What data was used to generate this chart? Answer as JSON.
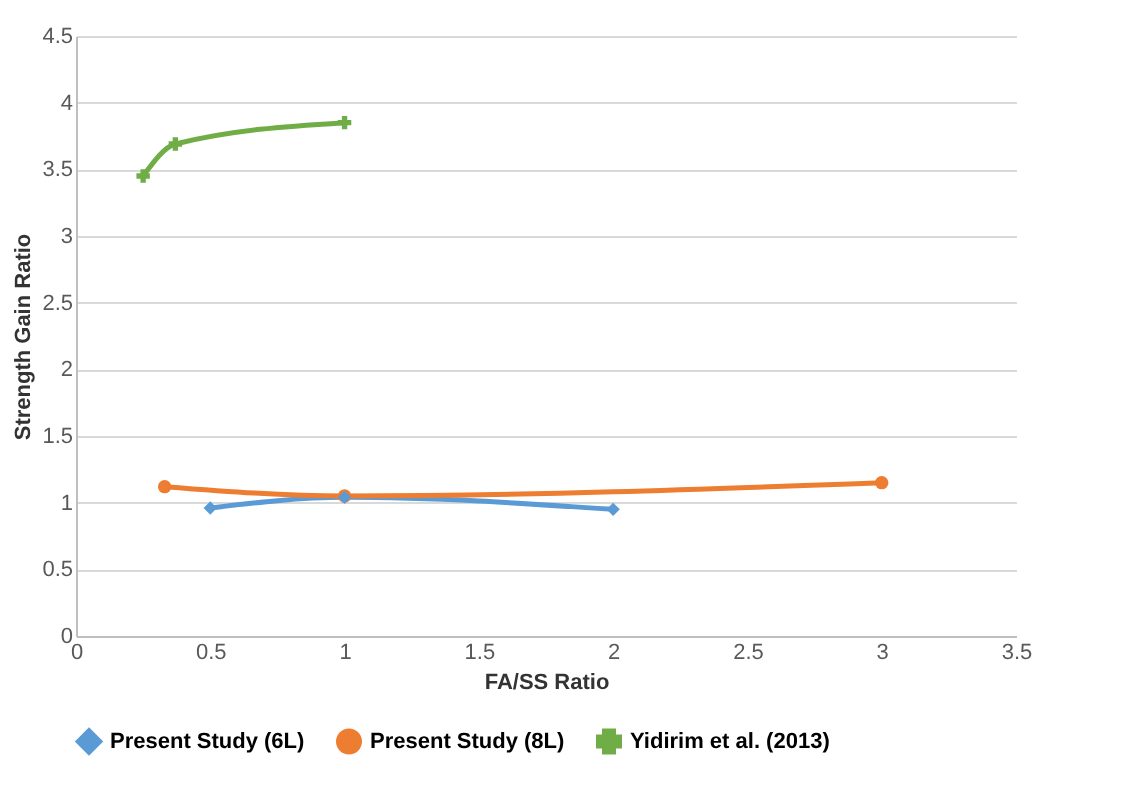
{
  "chart_data": {
    "type": "line",
    "xlabel": "FA/SS Ratio",
    "ylabel": "Strength Gain Ratio",
    "xlim": [
      0,
      3.5
    ],
    "xticks": [
      0,
      0.5,
      1,
      1.5,
      2,
      2.5,
      3,
      3.5
    ],
    "ylim": [
      0,
      4.5
    ],
    "yticks": [
      0,
      0.5,
      1,
      1.5,
      2,
      2.5,
      3,
      3.5,
      4,
      4.5
    ],
    "grid": "y",
    "legend": "bottom",
    "series": [
      {
        "name": "Present Study (6L)",
        "color": "#5b9bd5",
        "marker": "diamond",
        "x": [
          0.5,
          1,
          2
        ],
        "values": [
          0.96,
          1.04,
          0.95
        ]
      },
      {
        "name": "Present Study (8L)",
        "color": "#ed7d31",
        "marker": "circle",
        "x": [
          0.33,
          1,
          3
        ],
        "values": [
          1.12,
          1.05,
          1.15
        ]
      },
      {
        "name": "Yidirim et al. (2013)",
        "color": "#70ad47",
        "marker": "cross",
        "x": [
          0.25,
          0.37,
          1
        ],
        "values": [
          3.45,
          3.69,
          3.85
        ]
      }
    ]
  }
}
